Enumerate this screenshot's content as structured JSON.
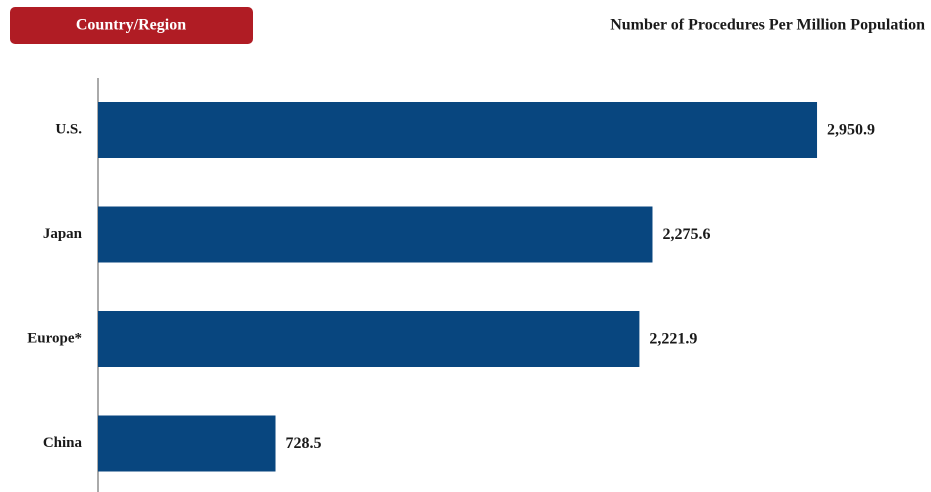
{
  "chart_data": {
    "type": "hbar",
    "title": "Number of Procedures Per Million Population",
    "ylabel": "Country/Region",
    "categories": [
      "U.S.",
      "Japan",
      "Europe*",
      "China"
    ],
    "values": [
      2950.9,
      2275.6,
      2221.9,
      728.5
    ],
    "value_labels": [
      "2,950.9",
      "2,275.6",
      "2,221.9",
      "728.5"
    ],
    "color": "#08467f",
    "xlim": [
      0,
      3000
    ]
  }
}
